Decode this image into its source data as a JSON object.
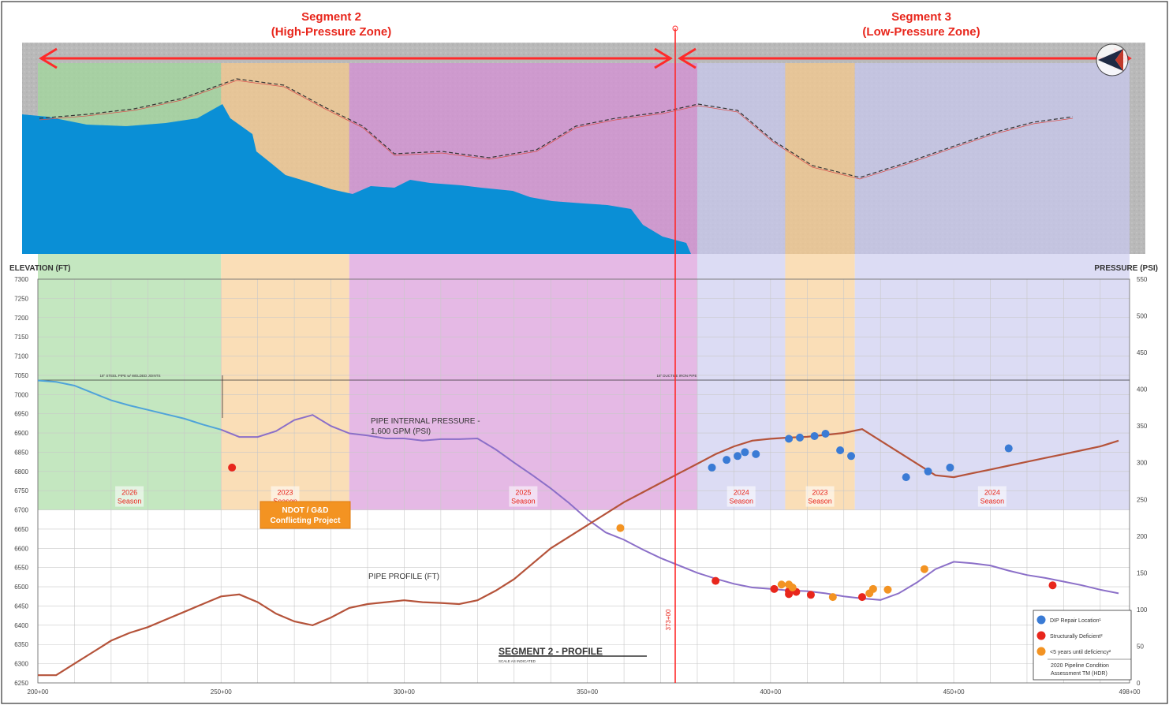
{
  "segments": [
    {
      "title": "Segment 2",
      "subtitle": "(High-Pressure Zone)"
    },
    {
      "title": "Segment 3",
      "subtitle": "(Low-Pressure Zone)"
    }
  ],
  "colors": {
    "green_zone": "#9fd89a",
    "orange_zone": "#f7c98a",
    "magenta_zone": "#d58ed5",
    "lavender_zone": "#c7c7ee",
    "water": "#0a8fd6",
    "pressure_line_2026": "#4fa3d9",
    "pressure_line": "#8b6fc8",
    "profile_line": "#b5533a",
    "divider": "#ff2a2a",
    "title_red": "#e8261c",
    "blue_marker": "#3a7bd5",
    "red_marker": "#e8261c",
    "orange_marker": "#f39322"
  },
  "notes": {
    "pipe_a": "18\" STEEL PIPE w/ WELDED JOINTS",
    "pipe_b": "18\" DUCTILE IRON PIPE",
    "pressure_label_1": "PIPE INTERNAL PRESSURE -",
    "pressure_label_2": "1,600 GPM (PSI)",
    "profile_label": "PIPE PROFILE (FT)",
    "segment_profile_title": "SEGMENT 2 - PROFILE",
    "segment_profile_scale": "SCALE AS INDICATED",
    "station_marker": "373+00",
    "conflict_1": "NDOT / G&D",
    "conflict_2": "Conflicting Project",
    "legend_source_1": "2020 Pipeline Condition",
    "legend_source_2": "Assessment TM (HDR)"
  },
  "chart_data": {
    "type": "line",
    "title": "SEGMENT 2 - PROFILE",
    "xlabel": "",
    "ylabel": "ELEVATION (FT)",
    "y2label": "PRESSURE (PSI)",
    "xlim": [
      200,
      498
    ],
    "ylim": [
      6250,
      7300
    ],
    "y2lim": [
      0,
      550
    ],
    "x_ticks": [
      "200+00",
      "250+00",
      "300+00",
      "350+00",
      "400+00",
      "450+00",
      "498+00"
    ],
    "y_ticks": [
      6250,
      6300,
      6350,
      6400,
      6450,
      6500,
      6550,
      6600,
      6650,
      6700,
      6750,
      6800,
      6850,
      6900,
      6950,
      7000,
      7050,
      7100,
      7150,
      7200,
      7250,
      7300
    ],
    "y2_ticks": [
      0,
      50,
      100,
      150,
      200,
      250,
      300,
      350,
      400,
      450,
      500,
      550
    ],
    "zones": [
      {
        "x0": 200,
        "x1": 250,
        "color": "green",
        "season": "2026",
        "season_word": "Season"
      },
      {
        "x0": 250,
        "x1": 285,
        "color": "orange",
        "season": "2023",
        "season_word": "Season"
      },
      {
        "x0": 285,
        "x1": 380,
        "color": "magenta",
        "season": "2025",
        "season_word": "Season"
      },
      {
        "x0": 380,
        "x1": 404,
        "color": "lavender",
        "season": "2024",
        "season_word": "Season"
      },
      {
        "x0": 404,
        "x1": 423,
        "color": "orange",
        "season": "2023",
        "season_word": "Season"
      },
      {
        "x0": 423,
        "x1": 498,
        "color": "lavender",
        "season": "2024",
        "season_word": "Season"
      }
    ],
    "series": [
      {
        "name": "PIPE INTERNAL PRESSURE - 1,600 GPM (PSI)",
        "axis": "right",
        "x": [
          200,
          205,
          210,
          215,
          220,
          225,
          230,
          235,
          240,
          245,
          250,
          255,
          260,
          265,
          270,
          275,
          280,
          285,
          290,
          295,
          300,
          305,
          310,
          315,
          320,
          325,
          330,
          335,
          340,
          345,
          350,
          355,
          360,
          365,
          370,
          375,
          380,
          385,
          390,
          395,
          400,
          405,
          410,
          415,
          420,
          425,
          430,
          435,
          440,
          445,
          450,
          455,
          460,
          465,
          470,
          475,
          480,
          485,
          490,
          495
        ],
        "y": [
          412,
          410,
          405,
          395,
          385,
          378,
          372,
          366,
          360,
          352,
          345,
          335,
          335,
          343,
          358,
          365,
          350,
          340,
          337,
          333,
          333,
          330,
          332,
          332,
          333,
          318,
          300,
          283,
          265,
          245,
          223,
          205,
          195,
          182,
          170,
          160,
          150,
          142,
          135,
          130,
          128,
          126,
          125,
          122,
          118,
          115,
          113,
          122,
          137,
          155,
          165,
          163,
          160,
          153,
          147,
          143,
          138,
          133,
          127,
          122
        ]
      },
      {
        "name": "PIPE PROFILE (FT)",
        "axis": "left",
        "x": [
          200,
          205,
          210,
          215,
          220,
          225,
          230,
          235,
          240,
          245,
          250,
          255,
          260,
          265,
          270,
          275,
          280,
          285,
          290,
          295,
          300,
          305,
          310,
          315,
          320,
          325,
          330,
          335,
          340,
          345,
          350,
          355,
          360,
          365,
          370,
          375,
          380,
          385,
          390,
          395,
          400,
          405,
          410,
          415,
          420,
          425,
          430,
          435,
          440,
          445,
          450,
          455,
          460,
          465,
          470,
          475,
          480,
          485,
          490,
          495
        ],
        "y": [
          6270,
          6270,
          6300,
          6330,
          6360,
          6380,
          6395,
          6415,
          6435,
          6455,
          6475,
          6480,
          6460,
          6430,
          6410,
          6400,
          6420,
          6445,
          6455,
          6460,
          6465,
          6460,
          6458,
          6455,
          6465,
          6490,
          6520,
          6560,
          6600,
          6630,
          6660,
          6690,
          6720,
          6745,
          6770,
          6795,
          6820,
          6845,
          6865,
          6880,
          6885,
          6888,
          6890,
          6895,
          6900,
          6910,
          6880,
          6850,
          6820,
          6790,
          6785,
          6795,
          6805,
          6815,
          6825,
          6835,
          6845,
          6855,
          6865,
          6880
        ]
      }
    ],
    "markers": [
      {
        "type": "DIP Repair Location",
        "color": "blue",
        "axis": "left",
        "points": [
          [
            384,
            6810
          ],
          [
            388,
            6830
          ],
          [
            391,
            6840
          ],
          [
            393,
            6850
          ],
          [
            396,
            6845
          ],
          [
            405,
            6885
          ],
          [
            408,
            6888
          ],
          [
            412,
            6892
          ],
          [
            415,
            6898
          ],
          [
            419,
            6855
          ],
          [
            422,
            6840
          ],
          [
            437,
            6785
          ],
          [
            443,
            6800
          ],
          [
            449,
            6810
          ],
          [
            465,
            6860
          ]
        ]
      },
      {
        "type": "Structurally Deficient",
        "color": "red",
        "axis": "left",
        "points": [
          [
            253,
            6810
          ]
        ]
      },
      {
        "type": "Structurally Deficient",
        "color": "red",
        "axis": "right",
        "points": [
          [
            385,
            139
          ],
          [
            401,
            128
          ],
          [
            405,
            125
          ],
          [
            405,
            121
          ],
          [
            407,
            124
          ],
          [
            411,
            120
          ],
          [
            425,
            117
          ],
          [
            477,
            133
          ]
        ]
      },
      {
        "type": "<5 years until deficiency",
        "color": "orange",
        "axis": "right",
        "points": [
          [
            359,
            211
          ],
          [
            403,
            134
          ],
          [
            405,
            134
          ],
          [
            406,
            130
          ],
          [
            417,
            117
          ],
          [
            427,
            122
          ],
          [
            428,
            128
          ],
          [
            432,
            127
          ],
          [
            442,
            155
          ]
        ]
      }
    ],
    "legend": {
      "placement": "bottom-right",
      "items": [
        {
          "label": "DIP Repair Location¹",
          "color": "blue"
        },
        {
          "label": "Structurally Deficient²",
          "color": "red"
        },
        {
          "label": "<5 years until deficiency²",
          "color": "orange"
        }
      ]
    },
    "grid": true
  }
}
